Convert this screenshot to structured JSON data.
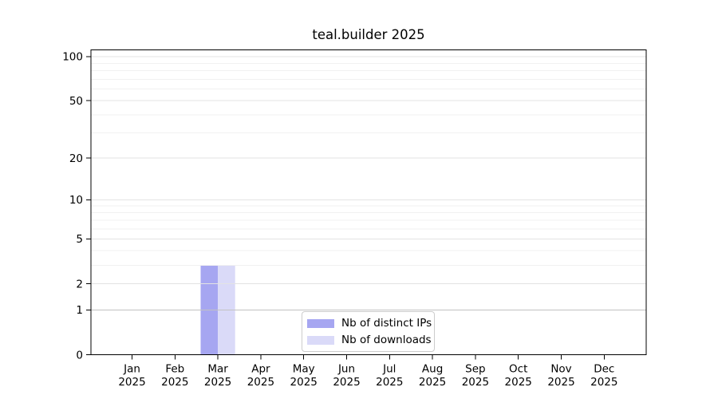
{
  "title": "teal.builder 2025",
  "chart_data": {
    "type": "bar",
    "title": "teal.builder 2025",
    "categories": [
      "Jan",
      "Feb",
      "Mar",
      "Apr",
      "May",
      "Jun",
      "Jul",
      "Aug",
      "Sep",
      "Oct",
      "Nov",
      "Dec"
    ],
    "x_year_label": "2025",
    "series": [
      {
        "name": "Nb of distinct IPs",
        "color": "#a6a6f1",
        "values": [
          0,
          0,
          3,
          0,
          0,
          0,
          0,
          0,
          0,
          0,
          0,
          0
        ]
      },
      {
        "name": "Nb of downloads",
        "color": "#dadaf8",
        "values": [
          0,
          0,
          3,
          0,
          0,
          0,
          0,
          0,
          0,
          0,
          0,
          0
        ]
      }
    ],
    "y_scale": "log1p",
    "y_max": 111,
    "y_ticks": [
      0,
      1,
      2,
      5,
      10,
      20,
      50,
      100
    ],
    "y_minor_ticks": [
      3,
      4,
      6,
      7,
      8,
      9,
      30,
      40,
      60,
      70,
      80,
      90
    ],
    "grid": true,
    "legend_position": "lower center",
    "xlabel": "",
    "ylabel": ""
  },
  "legend": {
    "items": [
      {
        "label": "Nb of distinct IPs",
        "color": "#a6a6f1"
      },
      {
        "label": "Nb of downloads",
        "color": "#dadaf8"
      }
    ]
  },
  "colors": {
    "background": "#ffffff",
    "axis": "#000000",
    "text": "#000000",
    "grid_minor": "#f1f1f1",
    "grid_major": "#e3e3e3",
    "grid_baseline_one": "#c2c2c2",
    "legend_border": "#cccccc"
  }
}
